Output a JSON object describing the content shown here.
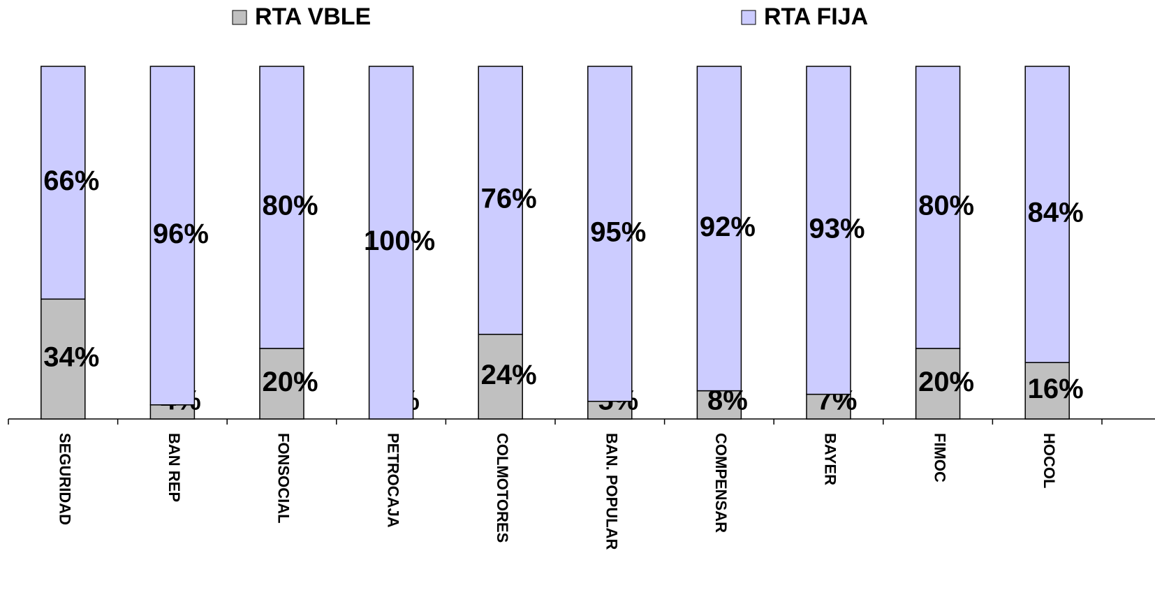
{
  "chart_data": {
    "type": "bar",
    "stacked": "percent",
    "categories": [
      "SEGURIDAD",
      "BAN REP",
      "FONSOCIAL",
      "PETROCAJA",
      "COLMOTORES",
      "BAN. POPULAR",
      "COMPENSAR",
      "BAYER",
      "FIMOC",
      "HOCOL"
    ],
    "series": [
      {
        "name": "RTA VBLE",
        "color": "#c0c0c0",
        "values": [
          34,
          4,
          20,
          0,
          24,
          5,
          8,
          7,
          20,
          16
        ],
        "value_labels": [
          "34%",
          "4%",
          "20%",
          "0%",
          "24%",
          "5%",
          "8%",
          "7%",
          "20%",
          "16%"
        ]
      },
      {
        "name": "RTA FIJA",
        "color": "#ccccff",
        "values": [
          66,
          96,
          80,
          100,
          76,
          95,
          92,
          93,
          80,
          84
        ],
        "value_labels": [
          "66%",
          "96%",
          "80%",
          "100%",
          "76%",
          "95%",
          "92%",
          "93%",
          "80%",
          "84%"
        ]
      }
    ],
    "legend": "top"
  }
}
